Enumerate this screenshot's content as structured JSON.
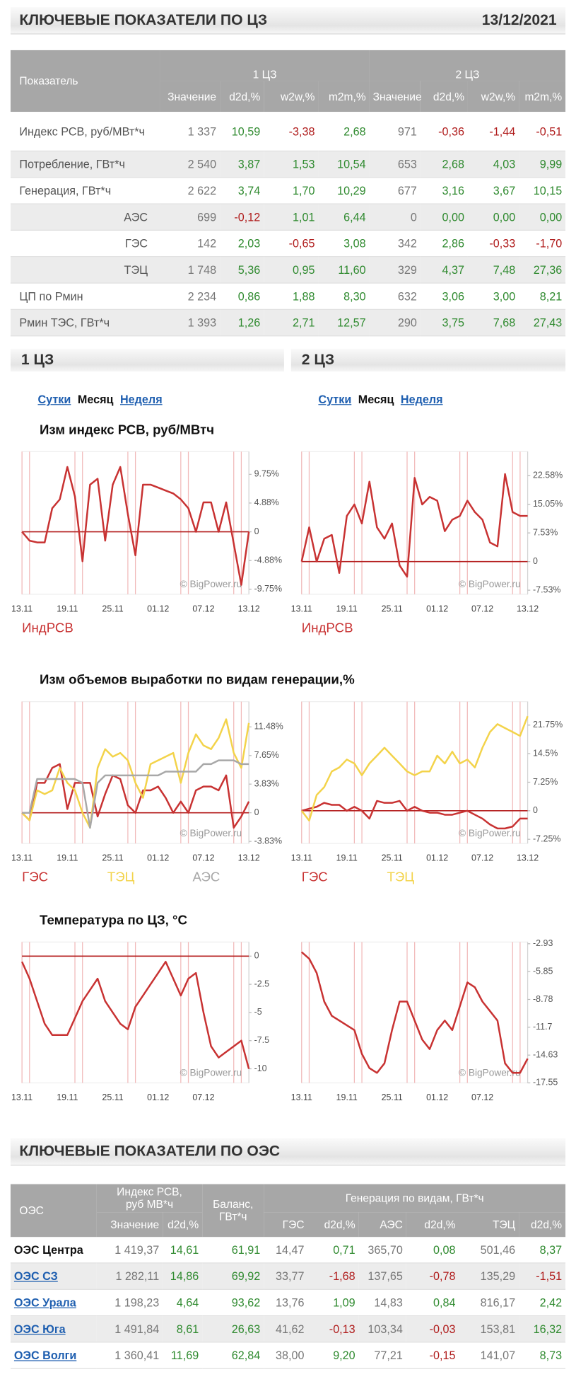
{
  "header": {
    "title": "КЛЮЧЕВЫЕ ПОКАЗАТЕЛИ ПО ЦЗ",
    "date": "13/12/2021"
  },
  "table1": {
    "headers": {
      "label": "Показатель",
      "groups": [
        "1 ЦЗ",
        "2 ЦЗ"
      ],
      "columns": [
        "Значение",
        "d2d,%",
        "w2w,%",
        "m2m,%",
        "Значение",
        "d2d,%",
        "w2w,%",
        "m2m,%"
      ]
    },
    "rows": [
      [
        "Индекс РСВ, руб/МВт*ч",
        "1 337",
        "10,59",
        "-3,38",
        "2,68",
        "971",
        "-0,36",
        "-1,44",
        "-0,51"
      ],
      [
        "Потребление, ГВт*ч",
        "2 540",
        "3,87",
        "1,53",
        "10,54",
        "653",
        "2,68",
        "4,03",
        "9,99"
      ],
      [
        "Генерация, ГВт*ч",
        "2 622",
        "3,74",
        "1,70",
        "10,29",
        "677",
        "3,16",
        "3,67",
        "10,15"
      ],
      [
        "АЭС",
        "699",
        "-0,12",
        "1,01",
        "6,44",
        "0",
        "0,00",
        "0,00",
        "0,00"
      ],
      [
        "ГЭС",
        "142",
        "2,03",
        "-0,65",
        "3,08",
        "342",
        "2,86",
        "-0,33",
        "-1,70"
      ],
      [
        "ТЭЦ",
        "1 748",
        "5,36",
        "0,95",
        "11,60",
        "329",
        "4,37",
        "7,48",
        "27,36"
      ],
      [
        "ЦП по Рмин",
        "2 234",
        "0,86",
        "1,88",
        "8,30",
        "632",
        "3,06",
        "3,00",
        "8,21"
      ],
      [
        "Рмин ТЭС, ГВт*ч",
        "1 393",
        "1,26",
        "2,71",
        "12,57",
        "290",
        "3,75",
        "7,68",
        "27,43"
      ]
    ]
  },
  "sections": [
    {
      "title": "1 ЦЗ",
      "links": [
        "Сутки",
        "Месяц",
        "Неделя"
      ]
    },
    {
      "title": "2 ЦЗ",
      "links": [
        "Сутки",
        "Месяц",
        "Неделя"
      ]
    }
  ],
  "chart_data": [
    {
      "type": "line",
      "title": "Изм индекс РСВ, руб/МВтч",
      "watermark": "© BigPower.ru",
      "categories": [
        "13.11",
        null,
        null,
        null,
        null,
        null,
        "19.11",
        null,
        null,
        null,
        null,
        null,
        "25.11",
        null,
        null,
        null,
        null,
        null,
        "01.12",
        null,
        null,
        null,
        null,
        null,
        "07.12",
        null,
        null,
        null,
        null,
        null,
        "13.12"
      ],
      "ylim": [
        -10.6,
        13.6
      ],
      "yticks": [
        {
          "value": 9.75,
          "label": "9.75%"
        },
        {
          "value": 4.88,
          "label": "4.88%"
        },
        0,
        {
          "value": -4.88,
          "label": "-4.88%"
        },
        {
          "value": -9.75,
          "label": "-9.75%"
        }
      ],
      "series": [
        {
          "name": "ИндРСВ",
          "color": "#c83232",
          "values": [
            0,
            -1.5,
            -1.8,
            -1.8,
            4,
            5.5,
            11,
            6,
            -5,
            8,
            9,
            -1.5,
            8,
            11,
            3,
            -4,
            8,
            8,
            7.5,
            7,
            6.5,
            5.5,
            4,
            0,
            5,
            5,
            0,
            5,
            -2,
            -9,
            0
          ]
        }
      ]
    },
    {
      "type": "line",
      "watermark": "© BigPower.ru",
      "categories": [
        "13.11",
        null,
        null,
        null,
        null,
        null,
        "19.11",
        null,
        null,
        null,
        null,
        null,
        "25.11",
        null,
        null,
        null,
        null,
        null,
        "01.12",
        null,
        null,
        null,
        null,
        null,
        "07.12",
        null,
        null,
        null,
        null,
        null,
        "13.12"
      ],
      "ylim": [
        -8.6,
        28.9
      ],
      "yticks": [
        {
          "value": 22.58,
          "label": "22.58%"
        },
        {
          "value": 15.05,
          "label": "15.05%"
        },
        {
          "value": 7.53,
          "label": "7.53%"
        },
        0,
        {
          "value": -7.53,
          "label": "-7.53%"
        }
      ],
      "series": [
        {
          "name": "ИндРСВ",
          "color": "#c83232",
          "values": [
            0,
            9,
            0,
            6,
            7,
            -3,
            12,
            15,
            10,
            21,
            9,
            6,
            10,
            -1,
            -4,
            22,
            15,
            17,
            16,
            8,
            11,
            12,
            16,
            13,
            11,
            5,
            4,
            23,
            13,
            12,
            12
          ]
        }
      ]
    },
    {
      "type": "line",
      "title": "Изм объемов выработки по видам генерации,%",
      "watermark": "© BigPower.ru",
      "categories": [
        "13.11",
        null,
        null,
        null,
        null,
        null,
        "19.11",
        null,
        null,
        null,
        null,
        null,
        "25.11",
        null,
        null,
        null,
        null,
        null,
        "01.12",
        null,
        null,
        null,
        null,
        null,
        "07.12",
        null,
        null,
        null,
        null,
        null,
        "13.12"
      ],
      "ylim": [
        -4.1,
        14.85
      ],
      "yticks": [
        {
          "value": 11.48,
          "label": "11.48%"
        },
        {
          "value": 7.65,
          "label": "7.65%"
        },
        {
          "value": 3.83,
          "label": "3.83%"
        },
        0,
        {
          "value": -3.83,
          "label": "-3.83%"
        }
      ],
      "series": [
        {
          "name": "ГЭС",
          "color": "#c83232",
          "values": [
            0,
            -1,
            4,
            4,
            6,
            6.5,
            0.5,
            4,
            4,
            4,
            -0.5,
            2.5,
            5,
            4.5,
            1,
            0,
            3,
            3,
            3.5,
            2,
            0,
            1.5,
            0,
            3,
            3.5,
            3.5,
            3,
            5,
            -2,
            -0.5,
            1.5
          ]
        },
        {
          "name": "ТЭЦ",
          "color": "#f3d34a",
          "values": [
            0,
            -1,
            3,
            2.5,
            3,
            6,
            4,
            3,
            0,
            -2,
            6,
            8.5,
            7.5,
            8,
            7,
            4,
            2,
            6.5,
            7,
            7.5,
            8,
            4,
            8,
            10.5,
            9,
            8.5,
            10,
            12.5,
            8,
            6,
            12
          ]
        },
        {
          "name": "АЭС",
          "color": "#a8a8a8",
          "values": [
            0,
            0,
            4.5,
            4.5,
            4.5,
            4.5,
            4.5,
            4.5,
            4,
            -2,
            4,
            5,
            5,
            5,
            5,
            5,
            5,
            5,
            5,
            5.5,
            5.5,
            5.5,
            5.5,
            5.5,
            6.5,
            6.5,
            7,
            7,
            7,
            6.5,
            6.5
          ]
        }
      ]
    },
    {
      "type": "line",
      "watermark": "© BigPower.ru",
      "categories": [
        "13.11",
        null,
        null,
        null,
        null,
        null,
        "19.11",
        null,
        null,
        null,
        null,
        null,
        "25.11",
        null,
        null,
        null,
        null,
        null,
        "01.12",
        null,
        null,
        null,
        null,
        null,
        "07.12",
        null,
        null,
        null,
        null,
        null,
        "13.12"
      ],
      "ylim": [
        -8.3,
        27.7
      ],
      "yticks": [
        {
          "value": 21.75,
          "label": "21.75%"
        },
        {
          "value": 14.5,
          "label": "14.5%"
        },
        {
          "value": 7.25,
          "label": "7.25%"
        },
        0,
        {
          "value": -7.25,
          "label": "-7.25%"
        }
      ],
      "series": [
        {
          "name": "ГЭС",
          "color": "#c83232",
          "values": [
            0,
            0.5,
            1,
            2,
            1.5,
            1.5,
            0,
            1,
            0,
            -2,
            2.5,
            2,
            2,
            2.5,
            0,
            1,
            0,
            -0.5,
            -0.5,
            -1,
            -1,
            -0.5,
            0,
            -1,
            -2,
            -3.5,
            -4.5,
            -4.5,
            -4,
            -2,
            -2
          ]
        },
        {
          "name": "ТЭЦ",
          "color": "#f3d34a",
          "values": [
            0,
            -2.5,
            4,
            6,
            10,
            11,
            13,
            12,
            9,
            12,
            14,
            16,
            14,
            12,
            10,
            9,
            10,
            10,
            14,
            12,
            15,
            12,
            13,
            11,
            16,
            20,
            22,
            21,
            20,
            19,
            24
          ]
        }
      ]
    },
    {
      "type": "line",
      "title": "Температура по ЦЗ, °С",
      "watermark": "© BigPower.ru",
      "categories": [
        "13.11",
        null,
        null,
        null,
        null,
        null,
        "19.11",
        null,
        null,
        null,
        null,
        null,
        "25.11",
        null,
        null,
        null,
        null,
        null,
        "01.12",
        null,
        null,
        null,
        null,
        null,
        "07.12",
        null,
        null,
        null,
        null,
        null,
        null
      ],
      "ylim": [
        -11.25,
        1.25
      ],
      "yticks": [
        0,
        -2.5,
        -5,
        -7.5,
        -10
      ],
      "series": [
        {
          "color": "#c83232",
          "values": [
            -0.5,
            -2,
            -4,
            -6,
            -7,
            -7,
            -7,
            -5.5,
            -4,
            -3,
            -2,
            -4,
            -5,
            -6,
            -6.5,
            -4.5,
            -3.5,
            -2.5,
            -1.5,
            -0.5,
            -2,
            -3.5,
            -2,
            -1.5,
            -5,
            -8,
            -9,
            -8.5,
            -8,
            -7.5,
            -10
          ]
        }
      ]
    },
    {
      "type": "line",
      "watermark": "© BigPower.ru",
      "categories": [
        "13.11",
        null,
        null,
        null,
        null,
        null,
        "19.11",
        null,
        null,
        null,
        null,
        null,
        "25.11",
        null,
        null,
        null,
        null,
        null,
        "01.12",
        null,
        null,
        null,
        null,
        null,
        "07.12",
        null,
        null,
        null,
        null,
        null,
        null
      ],
      "ylim": [
        -17.55,
        -2.75
      ],
      "yticks": [
        -2.93,
        -5.85,
        -8.78,
        -11.7,
        -14.63,
        -17.55
      ],
      "series": [
        {
          "color": "#c83232",
          "values": [
            -3.8,
            -4.5,
            -6,
            -9,
            -10.5,
            -11,
            -11.5,
            -12,
            -14.5,
            -16,
            -16.5,
            -15.5,
            -12,
            -9,
            -9,
            -11,
            -13,
            -14,
            -12,
            -11,
            -12,
            -9.5,
            -7,
            -7.5,
            -9,
            -10,
            -11,
            -15.5,
            -16.5,
            -16.5,
            -15
          ]
        }
      ]
    }
  ],
  "header2": {
    "title": "КЛЮЧЕВЫЕ ПОКАЗАТЕЛИ ПО ОЭС"
  },
  "table2": {
    "headers": {
      "label": "ОЭС",
      "index": "Индекс РСВ, руб МВ*ч",
      "balance": "Баланс, ГВт*ч",
      "generation": "Генерация по видам, ГВт*ч",
      "columns": [
        "Значение",
        "d2d,%",
        "ГЭС",
        "d2d,%",
        "АЭС",
        "d2d,%",
        "ТЭЦ",
        "d2d,%"
      ]
    },
    "rows": [
      [
        "ОЭС Центра",
        "1 419,37",
        "14,61",
        "61,91",
        "14,47",
        "0,71",
        "365,70",
        "0,08",
        "501,46",
        "8,37"
      ],
      [
        "ОЭС СЗ",
        "1 282,11",
        "14,86",
        "69,92",
        "33,77",
        "-1,68",
        "137,65",
        "-0,78",
        "135,29",
        "-1,51"
      ],
      [
        "ОЭС Урала",
        "1 198,23",
        "4,64",
        "93,62",
        "13,76",
        "1,09",
        "14,83",
        "0,84",
        "816,17",
        "2,42"
      ],
      [
        "ОЭС Юга",
        "1 491,84",
        "8,61",
        "26,63",
        "41,62",
        "-0,13",
        "103,34",
        "-0,03",
        "153,81",
        "16,32"
      ],
      [
        "ОЭС Волги",
        "1 360,41",
        "11,69",
        "62,84",
        "38,00",
        "9,20",
        "77,21",
        "-0,15",
        "141,07",
        "8,73"
      ]
    ]
  }
}
